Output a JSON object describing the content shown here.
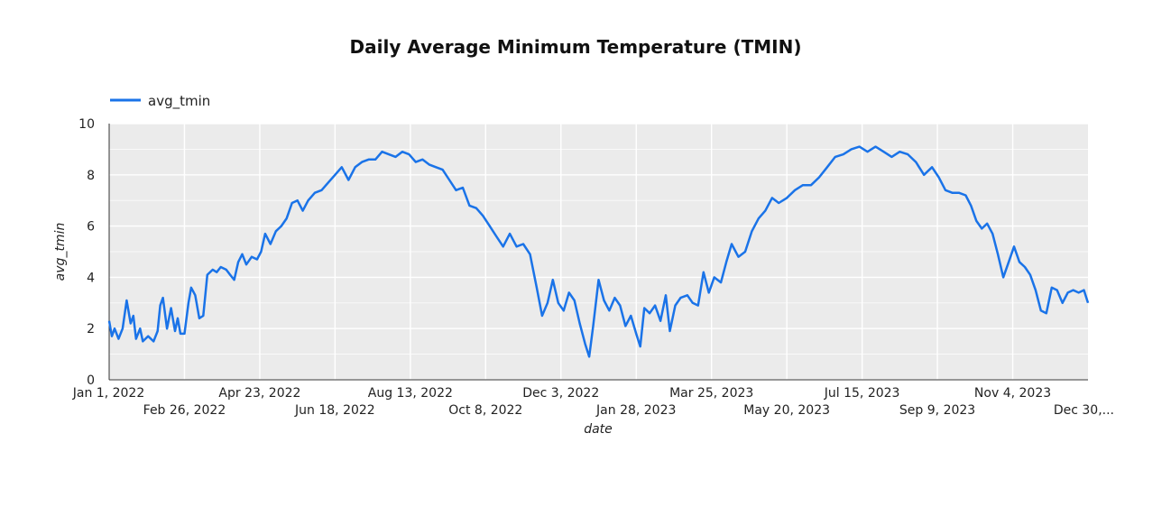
{
  "chart_data": {
    "type": "line",
    "title": "Daily Average Minimum Temperature (TMIN)",
    "xlabel": "date",
    "ylabel": "avg_tmin",
    "ylim": [
      0,
      10
    ],
    "yticks": [
      "0",
      "2",
      "4",
      "6",
      "8",
      "10"
    ],
    "xlim": [
      "2022-01-01",
      "2023-12-30"
    ],
    "xtick_dates": [
      "2022-01-01",
      "2022-02-26",
      "2022-04-23",
      "2022-06-18",
      "2022-08-13",
      "2022-10-08",
      "2022-12-03",
      "2023-01-28",
      "2023-03-25",
      "2023-05-20",
      "2023-07-15",
      "2023-09-09",
      "2023-11-04",
      "2023-12-30"
    ],
    "xtick_labels": [
      "Jan 1, 2022",
      "Feb 26, 2022",
      "Apr 23, 2022",
      "Jun 18, 2022",
      "Aug 13, 2022",
      "Oct 8, 2022",
      "Dec 3, 2022",
      "Jan 28, 2023",
      "Mar 25, 2023",
      "May 20, 2023",
      "Jul 15, 2023",
      "Sep 9, 2023",
      "Nov 4, 2023",
      "Dec 30,..."
    ],
    "grid": true,
    "legend_position": "top-left",
    "series": [
      {
        "name": "avg_tmin",
        "color": "#1a73e8",
        "points": [
          [
            "2022-01-01",
            2.3
          ],
          [
            "2022-01-03",
            1.7
          ],
          [
            "2022-01-05",
            2.0
          ],
          [
            "2022-01-08",
            1.6
          ],
          [
            "2022-01-11",
            2.0
          ],
          [
            "2022-01-14",
            3.1
          ],
          [
            "2022-01-17",
            2.2
          ],
          [
            "2022-01-19",
            2.5
          ],
          [
            "2022-01-21",
            1.6
          ],
          [
            "2022-01-24",
            2.0
          ],
          [
            "2022-01-26",
            1.5
          ],
          [
            "2022-01-30",
            1.7
          ],
          [
            "2022-02-03",
            1.5
          ],
          [
            "2022-02-06",
            1.9
          ],
          [
            "2022-02-08",
            2.9
          ],
          [
            "2022-02-10",
            3.2
          ],
          [
            "2022-02-13",
            2.0
          ],
          [
            "2022-02-16",
            2.8
          ],
          [
            "2022-02-19",
            1.9
          ],
          [
            "2022-02-21",
            2.4
          ],
          [
            "2022-02-23",
            1.8
          ],
          [
            "2022-02-26",
            1.8
          ],
          [
            "2022-03-01",
            3.0
          ],
          [
            "2022-03-03",
            3.6
          ],
          [
            "2022-03-06",
            3.3
          ],
          [
            "2022-03-09",
            2.4
          ],
          [
            "2022-03-12",
            2.5
          ],
          [
            "2022-03-15",
            4.1
          ],
          [
            "2022-03-19",
            4.3
          ],
          [
            "2022-03-22",
            4.2
          ],
          [
            "2022-03-25",
            4.4
          ],
          [
            "2022-03-29",
            4.3
          ],
          [
            "2022-04-01",
            4.1
          ],
          [
            "2022-04-04",
            3.9
          ],
          [
            "2022-04-07",
            4.6
          ],
          [
            "2022-04-10",
            4.9
          ],
          [
            "2022-04-13",
            4.5
          ],
          [
            "2022-04-17",
            4.8
          ],
          [
            "2022-04-21",
            4.7
          ],
          [
            "2022-04-24",
            5.0
          ],
          [
            "2022-04-27",
            5.7
          ],
          [
            "2022-05-01",
            5.3
          ],
          [
            "2022-05-05",
            5.8
          ],
          [
            "2022-05-09",
            6.0
          ],
          [
            "2022-05-13",
            6.3
          ],
          [
            "2022-05-17",
            6.9
          ],
          [
            "2022-05-21",
            7.0
          ],
          [
            "2022-05-25",
            6.6
          ],
          [
            "2022-05-29",
            7.0
          ],
          [
            "2022-06-03",
            7.3
          ],
          [
            "2022-06-08",
            7.4
          ],
          [
            "2022-06-13",
            7.7
          ],
          [
            "2022-06-18",
            8.0
          ],
          [
            "2022-06-23",
            8.3
          ],
          [
            "2022-06-28",
            7.8
          ],
          [
            "2022-07-03",
            8.3
          ],
          [
            "2022-07-08",
            8.5
          ],
          [
            "2022-07-13",
            8.6
          ],
          [
            "2022-07-18",
            8.6
          ],
          [
            "2022-07-23",
            8.9
          ],
          [
            "2022-07-28",
            8.8
          ],
          [
            "2022-08-02",
            8.7
          ],
          [
            "2022-08-07",
            8.9
          ],
          [
            "2022-08-12",
            8.8
          ],
          [
            "2022-08-17",
            8.5
          ],
          [
            "2022-08-22",
            8.6
          ],
          [
            "2022-08-27",
            8.4
          ],
          [
            "2022-09-01",
            8.3
          ],
          [
            "2022-09-06",
            8.2
          ],
          [
            "2022-09-11",
            7.8
          ],
          [
            "2022-09-16",
            7.4
          ],
          [
            "2022-09-21",
            7.5
          ],
          [
            "2022-09-26",
            6.8
          ],
          [
            "2022-10-01",
            6.7
          ],
          [
            "2022-10-06",
            6.4
          ],
          [
            "2022-10-11",
            6.0
          ],
          [
            "2022-10-16",
            5.6
          ],
          [
            "2022-10-21",
            5.2
          ],
          [
            "2022-10-26",
            5.7
          ],
          [
            "2022-10-31",
            5.2
          ],
          [
            "2022-11-05",
            5.3
          ],
          [
            "2022-11-10",
            4.9
          ],
          [
            "2022-11-15",
            3.6
          ],
          [
            "2022-11-19",
            2.5
          ],
          [
            "2022-11-23",
            3.0
          ],
          [
            "2022-11-27",
            3.9
          ],
          [
            "2022-12-01",
            3.0
          ],
          [
            "2022-12-05",
            2.7
          ],
          [
            "2022-12-09",
            3.4
          ],
          [
            "2022-12-13",
            3.1
          ],
          [
            "2022-12-17",
            2.2
          ],
          [
            "2022-12-21",
            1.4
          ],
          [
            "2022-12-24",
            0.9
          ],
          [
            "2022-12-27",
            2.1
          ],
          [
            "2022-12-31",
            3.9
          ],
          [
            "2023-01-04",
            3.1
          ],
          [
            "2023-01-08",
            2.7
          ],
          [
            "2023-01-12",
            3.2
          ],
          [
            "2023-01-16",
            2.9
          ],
          [
            "2023-01-20",
            2.1
          ],
          [
            "2023-01-24",
            2.5
          ],
          [
            "2023-01-28",
            1.8
          ],
          [
            "2023-01-31",
            1.3
          ],
          [
            "2023-02-03",
            2.8
          ],
          [
            "2023-02-07",
            2.6
          ],
          [
            "2023-02-11",
            2.9
          ],
          [
            "2023-02-15",
            2.3
          ],
          [
            "2023-02-19",
            3.3
          ],
          [
            "2023-02-22",
            1.9
          ],
          [
            "2023-02-26",
            2.9
          ],
          [
            "2023-03-02",
            3.2
          ],
          [
            "2023-03-07",
            3.3
          ],
          [
            "2023-03-11",
            3.0
          ],
          [
            "2023-03-15",
            2.9
          ],
          [
            "2023-03-19",
            4.2
          ],
          [
            "2023-03-23",
            3.4
          ],
          [
            "2023-03-27",
            4.0
          ],
          [
            "2023-04-01",
            3.8
          ],
          [
            "2023-04-05",
            4.6
          ],
          [
            "2023-04-09",
            5.3
          ],
          [
            "2023-04-14",
            4.8
          ],
          [
            "2023-04-19",
            5.0
          ],
          [
            "2023-04-24",
            5.8
          ],
          [
            "2023-04-29",
            6.3
          ],
          [
            "2023-05-04",
            6.6
          ],
          [
            "2023-05-09",
            7.1
          ],
          [
            "2023-05-14",
            6.9
          ],
          [
            "2023-05-20",
            7.1
          ],
          [
            "2023-05-26",
            7.4
          ],
          [
            "2023-06-01",
            7.6
          ],
          [
            "2023-06-07",
            7.6
          ],
          [
            "2023-06-13",
            7.9
          ],
          [
            "2023-06-19",
            8.3
          ],
          [
            "2023-06-25",
            8.7
          ],
          [
            "2023-07-01",
            8.8
          ],
          [
            "2023-07-07",
            9.0
          ],
          [
            "2023-07-13",
            9.1
          ],
          [
            "2023-07-19",
            8.9
          ],
          [
            "2023-07-25",
            9.1
          ],
          [
            "2023-07-31",
            8.9
          ],
          [
            "2023-08-06",
            8.7
          ],
          [
            "2023-08-12",
            8.9
          ],
          [
            "2023-08-18",
            8.8
          ],
          [
            "2023-08-24",
            8.5
          ],
          [
            "2023-08-30",
            8.0
          ],
          [
            "2023-09-05",
            8.3
          ],
          [
            "2023-09-10",
            7.9
          ],
          [
            "2023-09-15",
            7.4
          ],
          [
            "2023-09-20",
            7.3
          ],
          [
            "2023-09-25",
            7.3
          ],
          [
            "2023-09-30",
            7.2
          ],
          [
            "2023-10-04",
            6.8
          ],
          [
            "2023-10-08",
            6.2
          ],
          [
            "2023-10-12",
            5.9
          ],
          [
            "2023-10-16",
            6.1
          ],
          [
            "2023-10-20",
            5.7
          ],
          [
            "2023-10-24",
            4.9
          ],
          [
            "2023-10-28",
            4.0
          ],
          [
            "2023-11-01",
            4.6
          ],
          [
            "2023-11-05",
            5.2
          ],
          [
            "2023-11-09",
            4.6
          ],
          [
            "2023-11-13",
            4.4
          ],
          [
            "2023-11-17",
            4.1
          ],
          [
            "2023-11-21",
            3.5
          ],
          [
            "2023-11-25",
            2.7
          ],
          [
            "2023-11-29",
            2.6
          ],
          [
            "2023-12-03",
            3.6
          ],
          [
            "2023-12-07",
            3.5
          ],
          [
            "2023-12-11",
            3.0
          ],
          [
            "2023-12-15",
            3.4
          ],
          [
            "2023-12-19",
            3.5
          ],
          [
            "2023-12-23",
            3.4
          ],
          [
            "2023-12-27",
            3.5
          ],
          [
            "2023-12-30",
            3.0
          ]
        ]
      }
    ]
  }
}
